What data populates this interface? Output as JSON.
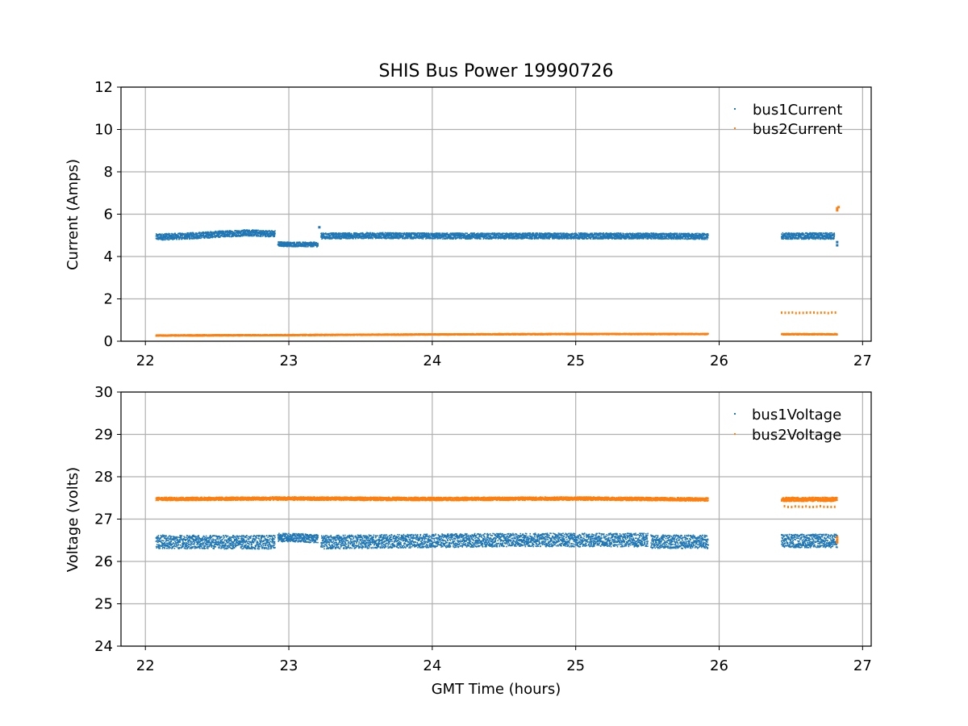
{
  "chart_data": [
    {
      "type": "scatter",
      "title": "SHIS Bus Power 19990726",
      "xlabel": "",
      "ylabel": "Current (Amps)",
      "xlim": [
        21.83,
        27.06
      ],
      "ylim": [
        0,
        12
      ],
      "xticks": [
        "22",
        "23",
        "24",
        "25",
        "26",
        "27"
      ],
      "yticks": [
        "0",
        "2",
        "4",
        "6",
        "8",
        "10",
        "12"
      ],
      "grid": true,
      "legend": "top-right",
      "series": [
        {
          "name": "bus1Current",
          "color": "#1f77b4",
          "segments": [
            {
              "x": [
                22.07,
                22.3,
                22.5,
                22.7,
                22.9
              ],
              "y": [
                4.95,
                5.0,
                5.08,
                5.15,
                5.1
              ],
              "spread": 0.3
            },
            {
              "x": [
                22.92,
                23.05,
                23.2
              ],
              "y": [
                4.62,
                4.6,
                4.6
              ],
              "spread": 0.22
            },
            {
              "x": [
                23.22,
                23.6,
                24.0,
                24.5,
                25.0,
                25.5,
                25.92
              ],
              "y": [
                5.0,
                5.02,
                5.0,
                5.0,
                5.0,
                5.0,
                4.98
              ],
              "spread": 0.28
            },
            {
              "x": [
                26.43,
                26.6,
                26.8
              ],
              "y": [
                5.0,
                5.0,
                5.0
              ],
              "spread": 0.3
            }
          ],
          "extra_points": [
            {
              "x": 26.82,
              "y": 4.55
            },
            {
              "x": 26.82,
              "y": 4.7
            },
            {
              "x": 23.21,
              "y": 5.4
            }
          ]
        },
        {
          "name": "bus2Current",
          "color": "#ff7f0e",
          "segments": [
            {
              "x": [
                22.07,
                23.0,
                24.0,
                25.0,
                25.92
              ],
              "y": [
                0.3,
                0.32,
                0.35,
                0.37,
                0.37
              ],
              "spread": 0.06
            },
            {
              "x": [
                26.43,
                26.82
              ],
              "y": [
                0.36,
                0.36
              ],
              "spread": 0.06
            },
            {
              "x": [
                26.43,
                26.82
              ],
              "y": [
                1.4,
                1.4
              ],
              "spread": 0.03,
              "dotted": true
            }
          ],
          "extra_points": [
            {
              "x": 26.82,
              "y": 6.3
            },
            {
              "x": 26.82,
              "y": 6.2
            },
            {
              "x": 26.83,
              "y": 6.35
            }
          ]
        }
      ]
    },
    {
      "type": "scatter",
      "title": "",
      "xlabel": "GMT Time (hours)",
      "ylabel": "Voltage (volts)",
      "xlim": [
        21.83,
        27.06
      ],
      "ylim": [
        24,
        30
      ],
      "xticks": [
        "22",
        "23",
        "24",
        "25",
        "26",
        "27"
      ],
      "yticks": [
        "24",
        "25",
        "26",
        "27",
        "28",
        "29",
        "30"
      ],
      "grid": true,
      "legend": "top-right",
      "series": [
        {
          "name": "bus1Voltage",
          "color": "#1f77b4",
          "segments": [
            {
              "x": [
                22.07,
                22.5,
                22.9
              ],
              "y": [
                26.48,
                26.47,
                26.47
              ],
              "spread": 0.32
            },
            {
              "x": [
                22.92,
                23.1,
                23.2
              ],
              "y": [
                26.58,
                26.57,
                26.55
              ],
              "spread": 0.2
            },
            {
              "x": [
                23.22,
                24.0,
                24.5,
                25.0,
                25.5
              ],
              "y": [
                26.47,
                26.5,
                26.52,
                26.52,
                26.52
              ],
              "spread": 0.32
            },
            {
              "x": [
                25.52,
                25.92
              ],
              "y": [
                26.48,
                26.48
              ],
              "spread": 0.32
            },
            {
              "x": [
                26.43,
                26.82
              ],
              "y": [
                26.5,
                26.5
              ],
              "spread": 0.32
            }
          ],
          "extra_points": []
        },
        {
          "name": "bus2Voltage",
          "color": "#ff7f0e",
          "segments": [
            {
              "x": [
                22.07,
                23.0,
                24.0,
                25.0,
                25.92
              ],
              "y": [
                27.49,
                27.5,
                27.49,
                27.5,
                27.48
              ],
              "spread": 0.08
            },
            {
              "x": [
                26.43,
                26.82
              ],
              "y": [
                27.48,
                27.48
              ],
              "spread": 0.1
            },
            {
              "x": [
                26.45,
                26.82
              ],
              "y": [
                27.32,
                27.32
              ],
              "spread": 0.03,
              "dotted": true
            }
          ],
          "extra_points": [
            {
              "x": 26.82,
              "y": 26.52
            },
            {
              "x": 26.82,
              "y": 26.58
            },
            {
              "x": 26.82,
              "y": 26.46
            }
          ]
        }
      ]
    }
  ]
}
